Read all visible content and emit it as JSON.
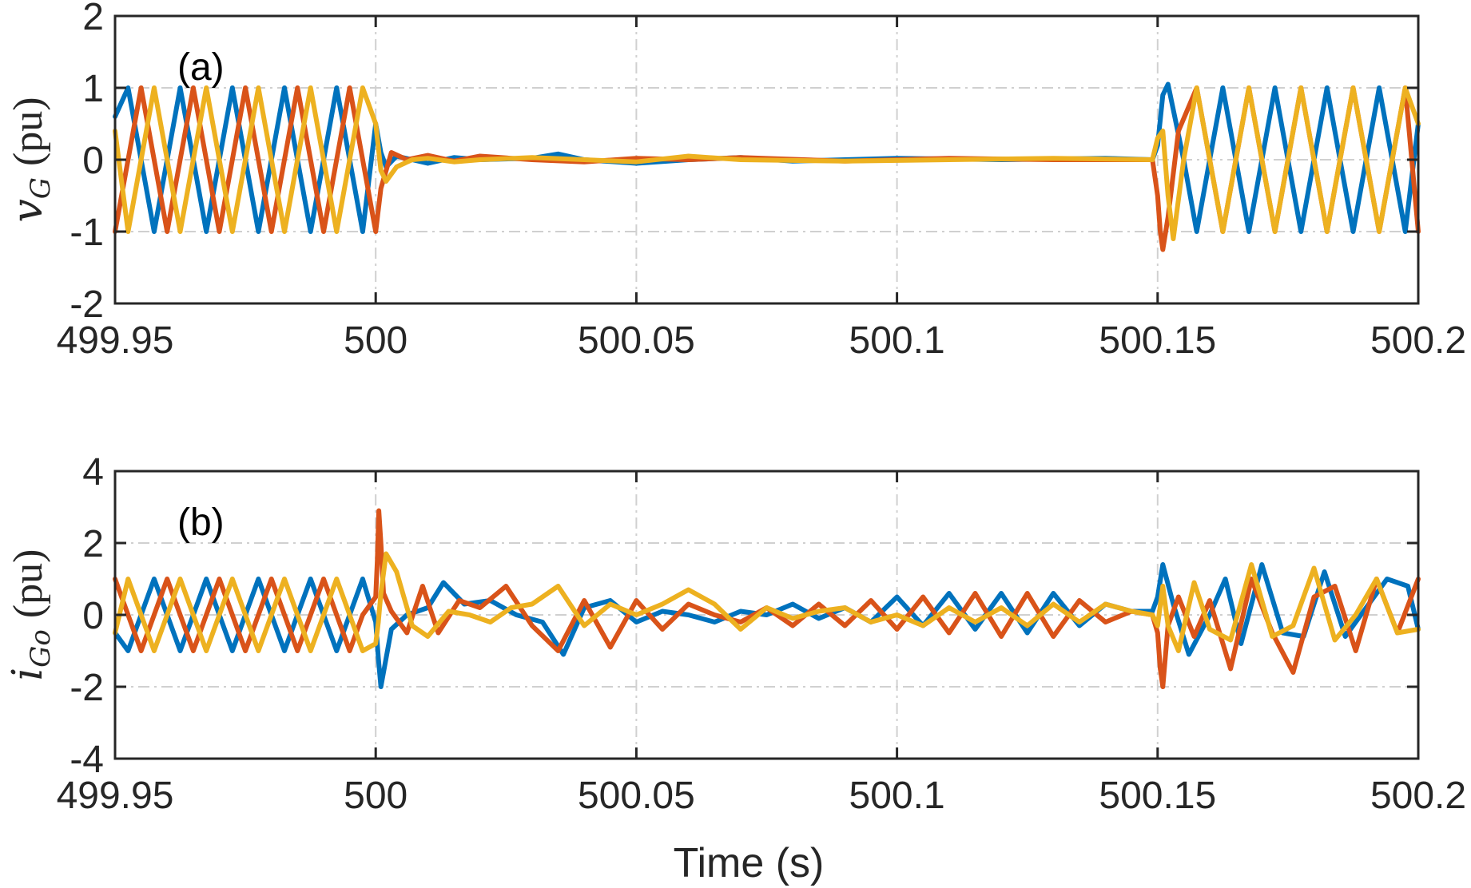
{
  "chart_data": [
    {
      "type": "line",
      "panel_label": "(a)",
      "ylabel": {
        "sym": "v",
        "sub": "G",
        "unit": "(pu)"
      },
      "xlim": [
        499.95,
        500.2
      ],
      "ylim": [
        -2,
        2
      ],
      "xticks": [
        499.95,
        500,
        500.05,
        500.1,
        500.15,
        500.2
      ],
      "xticklabels": [
        "499.95",
        "500",
        "500.05",
        "500.1",
        "500.15",
        "500.2"
      ],
      "yticks": [
        -2,
        -1,
        0,
        1,
        2
      ],
      "yticklabels": [
        "-2",
        "-1",
        "0",
        "1",
        "2"
      ],
      "grid": true,
      "series": [
        {
          "color": "#0072BD",
          "phase": 0,
          "x": [
            499.95,
            499.9525,
            499.955,
            499.9575,
            499.96,
            499.9625,
            499.965,
            499.9675,
            499.97,
            499.9725,
            499.975,
            499.9775,
            499.98,
            499.9825,
            499.985,
            499.9875,
            499.99,
            499.9925,
            499.995,
            499.9975,
            500.0,
            500.001,
            500.002,
            500.004,
            500.007,
            500.01,
            500.015,
            500.02,
            500.03,
            500.035,
            500.04,
            500.05,
            500.06,
            500.07,
            500.08,
            500.1,
            500.12,
            500.14,
            500.149,
            500.15,
            500.151,
            500.152,
            500.155,
            500.1575,
            500.16,
            500.1625,
            500.165,
            500.1675,
            500.17,
            500.1725,
            500.175,
            500.1775,
            500.18,
            500.1825,
            500.185,
            500.1875,
            500.19,
            500.1925,
            500.195,
            500.1975,
            500.2
          ],
          "y": [
            0.6,
            1.0,
            0.0,
            -1.0,
            0.0,
            1.0,
            0.0,
            -1.0,
            0.0,
            1.0,
            0.0,
            -1.0,
            0.0,
            1.0,
            0.0,
            -1.0,
            0.0,
            1.0,
            0.0,
            -1.0,
            0.5,
            0.1,
            -0.1,
            0.05,
            0.0,
            -0.05,
            0.03,
            0.0,
            0.02,
            0.08,
            0.0,
            -0.05,
            0.0,
            0.03,
            -0.02,
            0.02,
            0.0,
            0.02,
            0.0,
            0.2,
            0.9,
            1.05,
            0.0,
            -1.0,
            0.0,
            1.0,
            0.0,
            -1.0,
            0.0,
            1.0,
            0.0,
            -1.0,
            0.0,
            1.0,
            0.0,
            -1.0,
            0.0,
            1.0,
            0.0,
            -1.0,
            0.5
          ]
        },
        {
          "color": "#D95319",
          "phase": 1,
          "x": [
            499.95,
            499.9525,
            499.955,
            499.9575,
            499.96,
            499.9625,
            499.965,
            499.9675,
            499.97,
            499.9725,
            499.975,
            499.9775,
            499.98,
            499.9825,
            499.985,
            499.9875,
            499.99,
            499.9925,
            499.995,
            499.9975,
            500.0,
            500.001,
            500.003,
            500.006,
            500.01,
            500.015,
            500.02,
            500.03,
            500.04,
            500.05,
            500.06,
            500.07,
            500.09,
            500.11,
            500.13,
            500.149,
            500.15,
            500.1505,
            500.151,
            500.152,
            500.154,
            500.1575,
            500.16,
            500.1625,
            500.165,
            500.1675,
            500.17,
            500.1725,
            500.175,
            500.1775,
            500.18,
            500.1825,
            500.185,
            500.1875,
            500.19,
            500.1925,
            500.195,
            500.1975,
            500.2
          ],
          "y": [
            -1.0,
            0.0,
            1.0,
            0.0,
            -1.0,
            0.0,
            1.0,
            0.0,
            -1.0,
            0.0,
            1.0,
            0.0,
            -1.0,
            0.0,
            1.0,
            0.0,
            -1.0,
            0.0,
            1.0,
            0.0,
            -1.0,
            -0.4,
            0.1,
            0.0,
            0.06,
            -0.02,
            0.05,
            0.0,
            -0.03,
            0.02,
            0.0,
            0.03,
            -0.02,
            0.02,
            0.0,
            0.0,
            -0.5,
            -1.0,
            -1.25,
            -0.8,
            0.4,
            1.0,
            0.0,
            -1.0,
            0.0,
            1.0,
            0.0,
            -1.0,
            0.0,
            1.0,
            0.0,
            -1.0,
            0.0,
            1.0,
            0.0,
            -1.0,
            0.0,
            1.0,
            -1.0
          ]
        },
        {
          "color": "#EDB120",
          "phase": 2,
          "x": [
            499.95,
            499.9525,
            499.955,
            499.9575,
            499.96,
            499.9625,
            499.965,
            499.9675,
            499.97,
            499.9725,
            499.975,
            499.9775,
            499.98,
            499.9825,
            499.985,
            499.9875,
            499.99,
            499.9925,
            499.995,
            499.9975,
            500.0,
            500.001,
            500.002,
            500.004,
            500.007,
            500.01,
            500.015,
            500.02,
            500.03,
            500.04,
            500.05,
            500.06,
            500.07,
            500.09,
            500.11,
            500.13,
            500.149,
            500.15,
            500.151,
            500.152,
            500.153,
            500.155,
            500.1575,
            500.16,
            500.1625,
            500.165,
            500.1675,
            500.17,
            500.1725,
            500.175,
            500.1775,
            500.18,
            500.1825,
            500.185,
            500.1875,
            500.19,
            500.1925,
            500.195,
            500.1975,
            500.2
          ],
          "y": [
            0.4,
            -1.0,
            0.0,
            1.0,
            0.0,
            -1.0,
            0.0,
            1.0,
            0.0,
            -1.0,
            0.0,
            1.0,
            0.0,
            -1.0,
            0.0,
            1.0,
            0.0,
            -1.0,
            0.0,
            1.0,
            0.5,
            -0.15,
            -0.3,
            -0.1,
            0.0,
            0.02,
            -0.03,
            0.0,
            0.03,
            0.0,
            -0.03,
            0.05,
            0.0,
            -0.02,
            0.0,
            0.02,
            0.0,
            0.3,
            0.4,
            -0.5,
            -1.1,
            0.0,
            1.0,
            0.0,
            -1.0,
            0.0,
            1.0,
            0.0,
            -1.0,
            0.0,
            1.0,
            0.0,
            -1.0,
            0.0,
            1.0,
            0.0,
            -1.0,
            0.0,
            1.0,
            0.5
          ]
        }
      ]
    },
    {
      "type": "line",
      "panel_label": "(b)",
      "ylabel": {
        "sym": "i",
        "sub": "Go",
        "unit": "(pu)"
      },
      "xlim": [
        499.95,
        500.2
      ],
      "ylim": [
        -4,
        4
      ],
      "xticks": [
        499.95,
        500,
        500.05,
        500.1,
        500.15,
        500.2
      ],
      "xticklabels": [
        "499.95",
        "500",
        "500.05",
        "500.1",
        "500.15",
        "500.2"
      ],
      "yticks": [
        -4,
        -2,
        0,
        2,
        4
      ],
      "yticklabels": [
        "-4",
        "-2",
        "0",
        "2",
        "4"
      ],
      "grid": true,
      "series": [
        {
          "color": "#0072BD",
          "x": [
            499.95,
            499.9525,
            499.955,
            499.9575,
            499.96,
            499.9625,
            499.965,
            499.9675,
            499.97,
            499.9725,
            499.975,
            499.9775,
            499.98,
            499.9825,
            499.985,
            499.9875,
            499.99,
            499.9925,
            499.995,
            499.9975,
            500.0,
            500.0005,
            500.001,
            500.003,
            500.006,
            500.01,
            500.013,
            500.017,
            500.022,
            500.027,
            500.032,
            500.036,
            500.04,
            500.045,
            500.05,
            500.055,
            500.06,
            500.065,
            500.07,
            500.075,
            500.08,
            500.085,
            500.09,
            500.095,
            500.1,
            500.105,
            500.11,
            500.115,
            500.12,
            500.125,
            500.13,
            500.135,
            500.14,
            500.145,
            500.149,
            500.15,
            500.151,
            500.153,
            500.156,
            500.16,
            500.163,
            500.166,
            500.17,
            500.174,
            500.178,
            500.182,
            500.186,
            500.19,
            500.194,
            500.198,
            500.2
          ],
          "y": [
            -0.5,
            -1.0,
            0.0,
            1.0,
            0.0,
            -1.0,
            0.0,
            1.0,
            0.0,
            -1.0,
            0.0,
            1.0,
            0.0,
            -1.0,
            0.0,
            1.0,
            0.0,
            -1.0,
            0.0,
            1.0,
            -0.2,
            -1.2,
            -2.0,
            -0.4,
            0.0,
            0.2,
            0.9,
            0.3,
            0.4,
            0.0,
            -0.2,
            -1.1,
            0.2,
            0.4,
            -0.2,
            0.1,
            0.0,
            -0.2,
            0.1,
            0.0,
            0.3,
            -0.1,
            0.2,
            -0.2,
            0.5,
            -0.3,
            0.6,
            -0.4,
            0.6,
            -0.5,
            0.6,
            -0.3,
            0.3,
            0.1,
            0.1,
            0.5,
            1.4,
            0.3,
            -1.1,
            0.0,
            1.0,
            -0.8,
            1.4,
            -0.5,
            -0.6,
            1.2,
            -0.6,
            0.2,
            1.0,
            0.8,
            -0.4
          ]
        },
        {
          "color": "#D95319",
          "x": [
            499.95,
            499.9525,
            499.955,
            499.9575,
            499.96,
            499.9625,
            499.965,
            499.9675,
            499.97,
            499.9725,
            499.975,
            499.9775,
            499.98,
            499.9825,
            499.985,
            499.9875,
            499.99,
            499.9925,
            499.995,
            499.9975,
            500.0,
            500.0003,
            500.0006,
            500.001,
            500.0015,
            500.003,
            500.006,
            500.009,
            500.012,
            500.016,
            500.02,
            500.025,
            500.03,
            500.035,
            500.04,
            500.045,
            500.05,
            500.055,
            500.06,
            500.065,
            500.07,
            500.075,
            500.08,
            500.085,
            500.09,
            500.095,
            500.1,
            500.105,
            500.11,
            500.115,
            500.12,
            500.125,
            500.13,
            500.135,
            500.14,
            500.145,
            500.149,
            500.15,
            500.1505,
            500.151,
            500.152,
            500.154,
            500.157,
            500.16,
            500.164,
            500.168,
            500.172,
            500.176,
            500.18,
            500.184,
            500.188,
            500.192,
            500.196,
            500.2
          ],
          "y": [
            1.0,
            0.0,
            -1.0,
            0.0,
            1.0,
            0.0,
            -1.0,
            0.0,
            1.0,
            0.0,
            -1.0,
            0.0,
            1.0,
            0.0,
            -1.0,
            0.0,
            1.0,
            0.0,
            -1.0,
            0.0,
            0.5,
            1.5,
            2.9,
            2.0,
            0.6,
            0.1,
            -0.5,
            0.8,
            -0.5,
            0.4,
            0.2,
            0.8,
            -0.3,
            -1.0,
            0.4,
            -0.9,
            0.4,
            -0.4,
            0.3,
            0.0,
            -0.2,
            0.2,
            -0.3,
            0.3,
            -0.3,
            0.4,
            -0.4,
            0.5,
            -0.5,
            0.6,
            -0.6,
            0.6,
            -0.6,
            0.4,
            -0.2,
            0.1,
            0.0,
            -0.5,
            -1.5,
            -2.0,
            -0.3,
            0.5,
            -0.6,
            0.4,
            -1.5,
            1.0,
            -0.5,
            -1.6,
            0.5,
            0.8,
            -1.0,
            1.0,
            -0.5,
            1.0
          ]
        },
        {
          "color": "#EDB120",
          "x": [
            499.95,
            499.9525,
            499.955,
            499.9575,
            499.96,
            499.9625,
            499.965,
            499.9675,
            499.97,
            499.9725,
            499.975,
            499.9775,
            499.98,
            499.9825,
            499.985,
            499.9875,
            499.99,
            499.9925,
            499.995,
            499.9975,
            500.0,
            500.0005,
            500.001,
            500.002,
            500.004,
            500.007,
            500.01,
            500.014,
            500.018,
            500.022,
            500.026,
            500.03,
            500.035,
            500.04,
            500.045,
            500.05,
            500.055,
            500.06,
            500.065,
            500.07,
            500.075,
            500.08,
            500.085,
            500.09,
            500.095,
            500.1,
            500.105,
            500.11,
            500.115,
            500.12,
            500.125,
            500.13,
            500.135,
            500.14,
            500.145,
            500.149,
            500.15,
            500.151,
            500.152,
            500.154,
            500.157,
            500.16,
            500.164,
            500.168,
            500.172,
            500.176,
            500.18,
            500.184,
            500.188,
            500.192,
            500.196,
            500.2
          ],
          "y": [
            -0.5,
            1.0,
            0.0,
            -1.0,
            0.0,
            1.0,
            0.0,
            -1.0,
            0.0,
            1.0,
            0.0,
            -1.0,
            0.0,
            1.0,
            0.0,
            -1.0,
            0.0,
            1.0,
            0.0,
            -1.0,
            -0.8,
            -0.2,
            0.6,
            1.7,
            1.2,
            -0.3,
            -0.6,
            0.1,
            0.0,
            -0.2,
            0.2,
            0.3,
            0.8,
            -0.3,
            0.3,
            0.0,
            0.3,
            0.7,
            0.3,
            -0.4,
            0.2,
            -0.1,
            0.1,
            0.2,
            -0.2,
            0.0,
            -0.3,
            0.2,
            -0.2,
            0.2,
            -0.3,
            0.3,
            -0.2,
            0.3,
            0.1,
            0.0,
            -0.3,
            0.8,
            -0.3,
            -1.0,
            0.9,
            -0.4,
            -0.7,
            1.4,
            -0.6,
            -0.3,
            1.3,
            -0.7,
            0.0,
            1.0,
            -0.5,
            -0.4
          ]
        }
      ]
    }
  ],
  "xlabel": "Time (s)"
}
